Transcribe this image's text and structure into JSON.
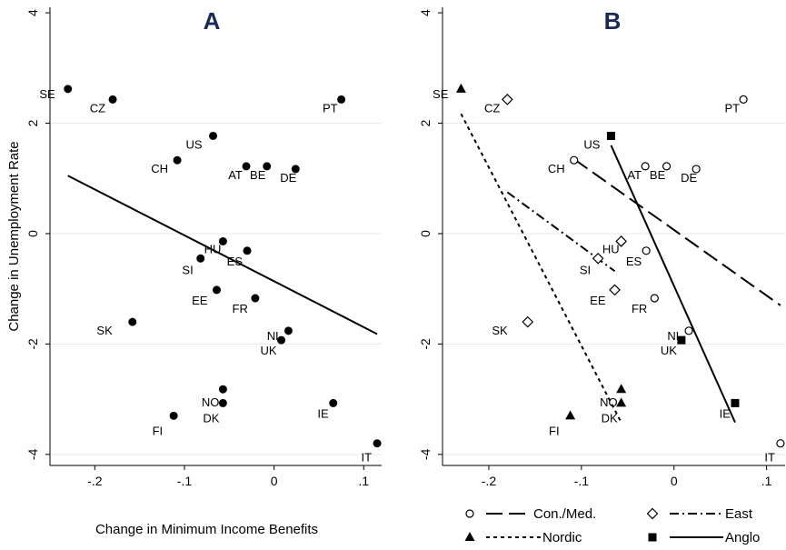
{
  "chart_data": [
    {
      "type": "scatter",
      "title": "A",
      "xlabel": "Change in Minimum Income Benefits",
      "ylabel": "Change in Unemployment Rate",
      "xlim": [
        -0.25,
        0.12
      ],
      "ylim": [
        -4.2,
        4.1
      ],
      "xticks": [
        -0.2,
        -0.1,
        0,
        0.1
      ],
      "xtick_labels": [
        "-.2",
        "-.1",
        "0",
        ".1"
      ],
      "yticks": [
        -4,
        -2,
        0,
        2,
        4
      ],
      "ytick_labels": [
        "-4",
        "-2",
        "0",
        "2",
        "4"
      ],
      "grid": true,
      "points": [
        {
          "label": "SE",
          "x": -0.23,
          "y": 2.62,
          "group": "Nordic"
        },
        {
          "label": "CZ",
          "x": -0.18,
          "y": 2.43,
          "group": "East"
        },
        {
          "label": "PT",
          "x": 0.075,
          "y": 2.43,
          "group": "Con./Med."
        },
        {
          "label": "US",
          "x": -0.068,
          "y": 1.77,
          "group": "Anglo"
        },
        {
          "label": "CH",
          "x": -0.108,
          "y": 1.33,
          "group": "Con./Med."
        },
        {
          "label": "AT",
          "x": -0.031,
          "y": 1.22,
          "group": "Con./Med."
        },
        {
          "label": "BE",
          "x": -0.008,
          "y": 1.22,
          "group": "Con./Med."
        },
        {
          "label": "DE",
          "x": 0.024,
          "y": 1.17,
          "group": "Con./Med."
        },
        {
          "label": "HU",
          "x": -0.057,
          "y": -0.14,
          "group": "East"
        },
        {
          "label": "ES",
          "x": -0.03,
          "y": -0.31,
          "group": "Con./Med."
        },
        {
          "label": "SI",
          "x": -0.082,
          "y": -0.45,
          "group": "East"
        },
        {
          "label": "EE",
          "x": -0.064,
          "y": -1.02,
          "group": "East"
        },
        {
          "label": "FR",
          "x": -0.021,
          "y": -1.17,
          "group": "Con./Med."
        },
        {
          "label": "SK",
          "x": -0.158,
          "y": -1.6,
          "group": "East"
        },
        {
          "label": "NL",
          "x": 0.016,
          "y": -1.76,
          "group": "Con./Med."
        },
        {
          "label": "UK",
          "x": 0.008,
          "y": -1.93,
          "group": "Anglo"
        },
        {
          "label": "NO",
          "x": -0.057,
          "y": -2.82,
          "group": "Nordic"
        },
        {
          "label": "DK",
          "x": -0.057,
          "y": -3.07,
          "group": "Nordic"
        },
        {
          "label": "FI",
          "x": -0.112,
          "y": -3.3,
          "group": "Nordic"
        },
        {
          "label": "IE",
          "x": 0.066,
          "y": -3.07,
          "group": "Anglo"
        },
        {
          "label": "IT",
          "x": 0.115,
          "y": -3.8,
          "group": "Con./Med."
        }
      ],
      "fit_lines": [
        {
          "from": [
            -0.23,
            1.05
          ],
          "to": [
            0.115,
            -1.82
          ],
          "style": "solid"
        }
      ]
    },
    {
      "type": "scatter",
      "title": "B",
      "xlabel": "",
      "ylabel": "",
      "xlim": [
        -0.25,
        0.12
      ],
      "ylim": [
        -4.2,
        4.1
      ],
      "xticks": [
        -0.2,
        -0.1,
        0,
        0.1
      ],
      "xtick_labels": [
        "-.2",
        "-.1",
        "0",
        ".1"
      ],
      "yticks": [
        -4,
        -2,
        0,
        2,
        4
      ],
      "ytick_labels": [
        "-4",
        "-2",
        "0",
        "2",
        "4"
      ],
      "grid": true,
      "fit_lines": [
        {
          "group": "Con./Med.",
          "from": [
            -0.108,
            1.35
          ],
          "to": [
            0.115,
            -1.3
          ],
          "style": "longdash"
        },
        {
          "group": "East",
          "from": [
            -0.18,
            0.75
          ],
          "to": [
            -0.064,
            -0.68
          ],
          "style": "dashdot"
        },
        {
          "group": "Nordic",
          "from": [
            -0.23,
            2.17
          ],
          "to": [
            -0.057,
            -3.42
          ],
          "style": "shortdash"
        },
        {
          "group": "Anglo",
          "from": [
            -0.068,
            1.6
          ],
          "to": [
            0.066,
            -3.42
          ],
          "style": "solid"
        }
      ],
      "legend": {
        "placement": "bottom",
        "entries": [
          {
            "name": "Con./Med.",
            "marker": "hollow-circle",
            "line": "longdash"
          },
          {
            "name": "East",
            "marker": "hollow-diamond",
            "line": "dashdot"
          },
          {
            "name": "Nordic",
            "marker": "filled-triangle",
            "line": "shortdash"
          },
          {
            "name": "Anglo",
            "marker": "filled-square",
            "line": "solid"
          }
        ]
      }
    }
  ]
}
